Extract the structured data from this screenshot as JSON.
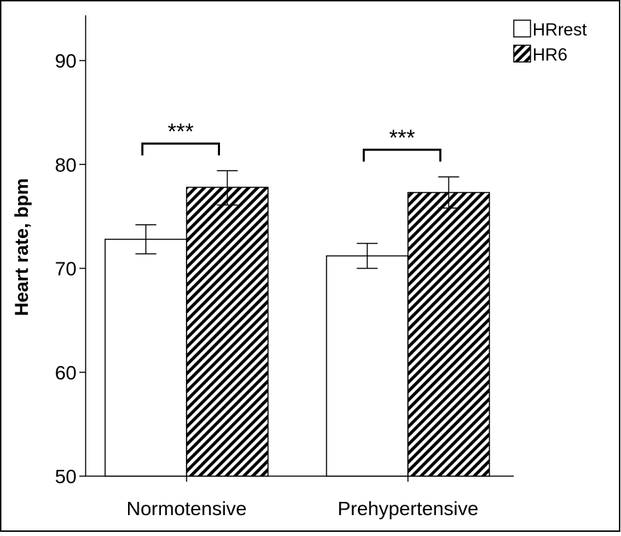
{
  "chart_data": {
    "type": "bar",
    "title": "",
    "xlabel": "",
    "ylabel": "Heart rate, bpm",
    "ylim": [
      50,
      95
    ],
    "yticks": [
      50,
      60,
      70,
      80,
      90
    ],
    "yticklabels": [
      "50",
      "60",
      "70",
      "80",
      "90"
    ],
    "categories": [
      "Normotensive",
      "Prehypertensive"
    ],
    "series": [
      {
        "name": "HRrest",
        "fill": "solid",
        "color": "#ffffff",
        "values": [
          72.8,
          71.2
        ],
        "error_low": [
          71.4,
          70.0
        ],
        "error_high": [
          74.2,
          72.4
        ]
      },
      {
        "name": "HR6",
        "fill": "hatched",
        "color": "#000000",
        "values": [
          77.8,
          77.3
        ],
        "error_low": [
          76.1,
          75.8
        ],
        "error_high": [
          79.4,
          78.8
        ]
      }
    ],
    "annotations": [
      {
        "category": "Normotensive",
        "text": "***"
      },
      {
        "category": "Prehypertensive",
        "text": "***"
      }
    ],
    "legend": {
      "position": "top-right",
      "entries": [
        "HRrest",
        "HR6"
      ]
    },
    "grid": false
  }
}
